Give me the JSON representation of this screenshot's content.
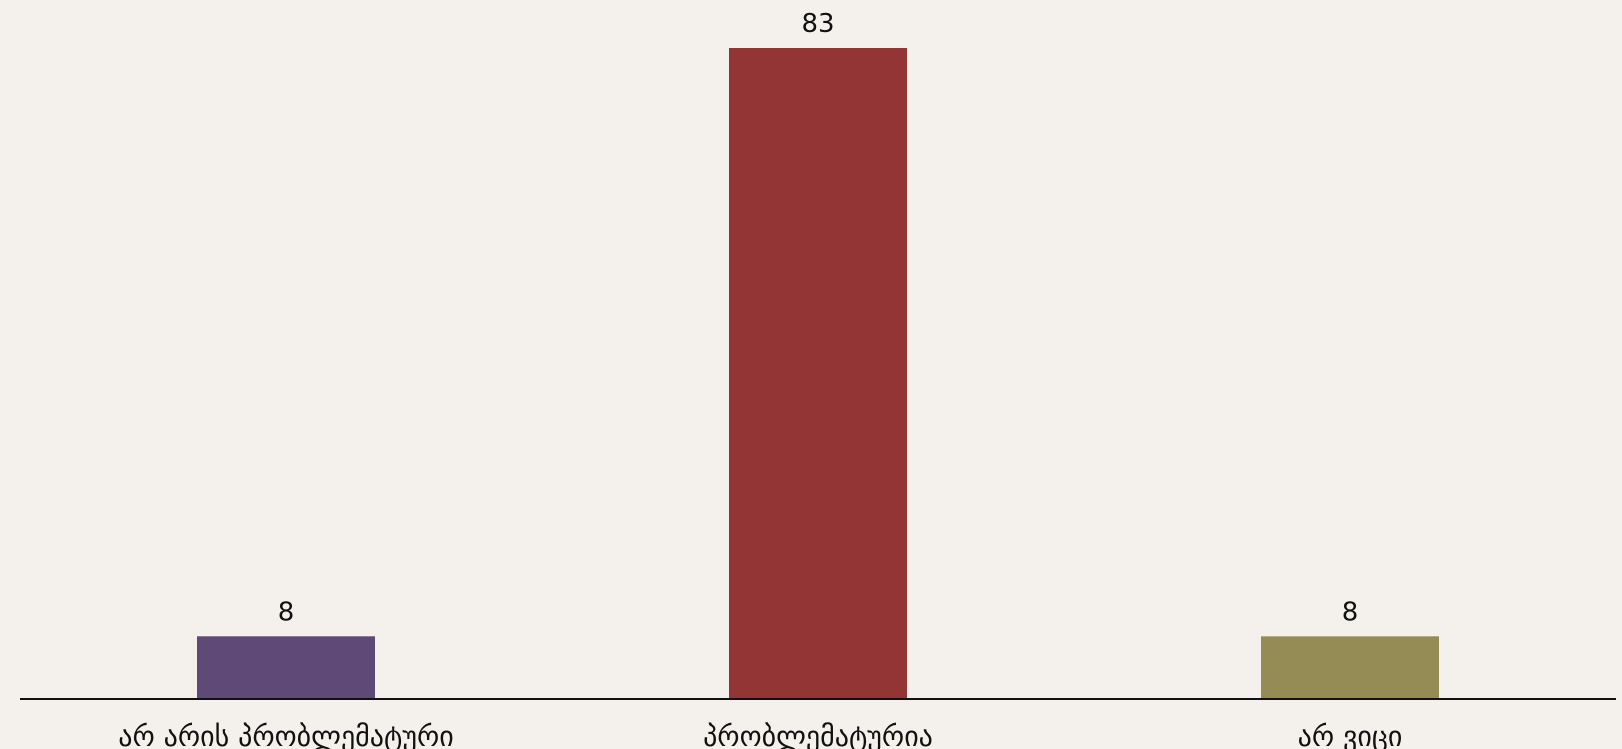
{
  "chart_data": {
    "type": "bar",
    "title": "",
    "xlabel": "",
    "ylabel": "",
    "categories": [
      "არ არის პრობლემატური",
      "პრობლემატურია",
      "არ ვიცი"
    ],
    "values": [
      8,
      83,
      8
    ],
    "data_labels": [
      "8",
      "83",
      "8"
    ],
    "colors": [
      "#5f4a77",
      "#943535",
      "#958c55"
    ],
    "ylim": [
      0,
      83
    ],
    "grid": false,
    "legend": "none",
    "background": "#f4f1ed",
    "axis_color": "#111111"
  }
}
